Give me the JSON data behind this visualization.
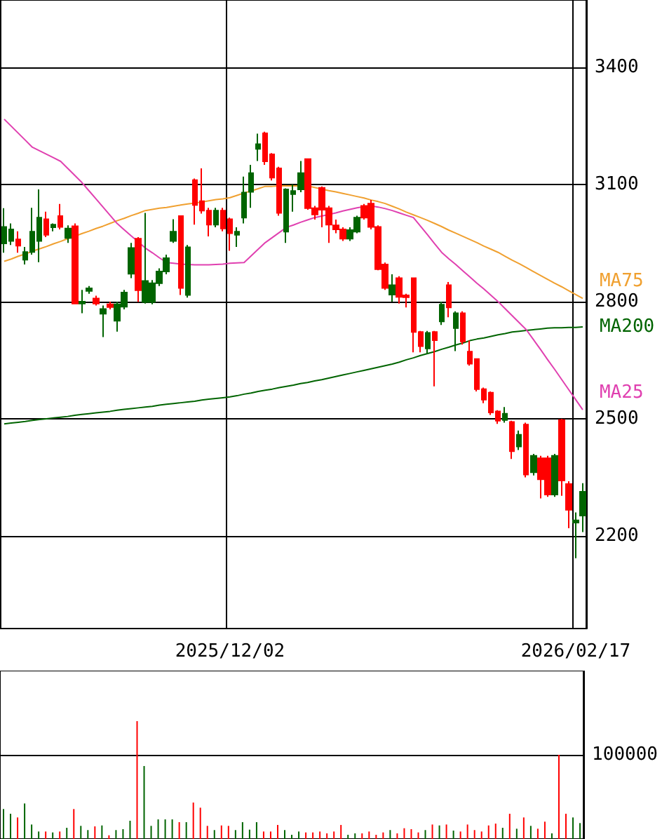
{
  "chart_data": [
    {
      "type": "candlestick",
      "categories": [
        null,
        null,
        null,
        null,
        null,
        null,
        null,
        null,
        null,
        null,
        null,
        null,
        null,
        null,
        null,
        null,
        null,
        null,
        null,
        null,
        null,
        null,
        null,
        null,
        null,
        null,
        null,
        null,
        null,
        null,
        null,
        null,
        "2025/12/02",
        null,
        null,
        null,
        null,
        null,
        null,
        null,
        null,
        null,
        null,
        null,
        null,
        null,
        null,
        null,
        null,
        null,
        null,
        null,
        null,
        null,
        null,
        null,
        null,
        null,
        null,
        null,
        null,
        null,
        null,
        null,
        null,
        null,
        null,
        null,
        null,
        null,
        null,
        null,
        null,
        null,
        null,
        null,
        null,
        null,
        null,
        null,
        null,
        "2026/02/17",
        null
      ],
      "ohlc": [
        [
          2949,
          3039,
          2925,
          2991
        ],
        [
          2955,
          3000,
          2945,
          2985
        ],
        [
          2959,
          2980,
          2925,
          2943
        ],
        [
          2907,
          2940,
          2895,
          2927
        ],
        [
          2927,
          3040,
          2920,
          2979
        ],
        [
          2955,
          3087,
          2901,
          3015
        ],
        [
          3011,
          3030,
          2965,
          2971
        ],
        [
          2990,
          3000,
          2980,
          2997
        ],
        [
          3019,
          3050,
          2985,
          2991
        ],
        [
          2963,
          2995,
          2950,
          2987
        ],
        [
          2993,
          3000,
          2795,
          2795
        ],
        [
          2795,
          2830,
          2770,
          2800
        ],
        [
          2827,
          2840,
          2820,
          2834
        ],
        [
          2808,
          2815,
          2790,
          2795
        ],
        [
          2769,
          2790,
          2709,
          2781
        ],
        [
          2793,
          2800,
          2780,
          2786
        ],
        [
          2751,
          2800,
          2723,
          2793
        ],
        [
          2787,
          2830,
          2780,
          2823
        ],
        [
          2871,
          2950,
          2860,
          2937
        ],
        [
          2961,
          2965,
          2799,
          2829
        ],
        [
          2799,
          3027,
          2795,
          2853
        ],
        [
          2799,
          2855,
          2793,
          2847
        ],
        [
          2847,
          2885,
          2840,
          2877
        ],
        [
          2877,
          2920,
          2870,
          2911
        ],
        [
          2955,
          3011,
          2950,
          2979
        ],
        [
          3019,
          3020,
          2817,
          2835
        ],
        [
          2817,
          2945,
          2810,
          2939
        ],
        [
          3111,
          3115,
          2997,
          3047
        ],
        [
          3057,
          3141,
          3025,
          3033
        ],
        [
          3033,
          3040,
          2967,
          2997
        ],
        [
          2997,
          3040,
          2990,
          3033
        ],
        [
          3033,
          3040,
          2980,
          2987
        ],
        [
          3011,
          3015,
          2930,
          2975
        ],
        [
          2971,
          2990,
          2940,
          2979
        ],
        [
          3015,
          3120,
          3000,
          3079
        ],
        [
          3081,
          3150,
          3040,
          3129
        ],
        [
          3191,
          3230,
          3160,
          3203
        ],
        [
          3231,
          3235,
          3150,
          3159
        ],
        [
          3177,
          3180,
          3110,
          3117
        ],
        [
          3141,
          3145,
          3020,
          3027
        ],
        [
          2979,
          3090,
          2950,
          3087
        ],
        [
          3075,
          3100,
          3030,
          3083
        ],
        [
          3087,
          3160,
          3080,
          3129
        ],
        [
          3165,
          3165,
          3035,
          3039
        ],
        [
          3039,
          3045,
          3010,
          3023
        ],
        [
          3091,
          3095,
          2990,
          3035
        ],
        [
          3039,
          3045,
          2950,
          2997
        ],
        [
          2995,
          3010,
          2975,
          2985
        ],
        [
          2985,
          2990,
          2955,
          2961
        ],
        [
          2961,
          2990,
          2955,
          2983
        ],
        [
          2979,
          3020,
          2975,
          3015
        ],
        [
          3045,
          3050,
          3010,
          3015
        ],
        [
          3051,
          3060,
          2985,
          2991
        ],
        [
          2991,
          2995,
          2880,
          2883
        ],
        [
          2895,
          2900,
          2830,
          2835
        ],
        [
          2818,
          2870,
          2800,
          2842
        ],
        [
          2860,
          2865,
          2795,
          2812
        ],
        [
          2816,
          2820,
          2785,
          2811
        ],
        [
          2860,
          2862,
          2670,
          2722
        ],
        [
          2722,
          2725,
          2670,
          2686
        ],
        [
          2680,
          2725,
          2665,
          2720
        ],
        [
          2722,
          2725,
          2583,
          2701
        ],
        [
          2749,
          2800,
          2740,
          2792
        ],
        [
          2842,
          2850,
          2760,
          2785
        ],
        [
          2732,
          2775,
          2673,
          2770
        ],
        [
          2770,
          2775,
          2690,
          2698
        ],
        [
          2672,
          2700,
          2636,
          2641
        ],
        [
          2653,
          2655,
          2570,
          2576
        ],
        [
          2576,
          2580,
          2540,
          2549
        ],
        [
          2567,
          2570,
          2510,
          2516
        ],
        [
          2519,
          2522,
          2487,
          2495
        ],
        [
          2497,
          2530,
          2490,
          2513
        ],
        [
          2492,
          2495,
          2397,
          2417
        ],
        [
          2429,
          2470,
          2420,
          2459
        ],
        [
          2485,
          2490,
          2350,
          2357
        ],
        [
          2363,
          2410,
          2355,
          2405
        ],
        [
          2399,
          2405,
          2296,
          2345
        ],
        [
          2399,
          2405,
          2300,
          2306
        ],
        [
          2306,
          2410,
          2300,
          2405
        ],
        [
          2497,
          2500,
          2303,
          2342
        ],
        [
          2333,
          2340,
          2220,
          2267
        ],
        [
          2234,
          2260,
          2143,
          2240
        ],
        [
          2252,
          2335,
          2210,
          2313
        ]
      ],
      "colors": [
        "#006400",
        "#006400",
        "#ff0000",
        "#006400",
        "#006400",
        "#006400",
        "#ff0000",
        "#006400",
        "#ff0000",
        "#006400",
        "#ff0000",
        "#006400",
        "#006400",
        "#ff0000",
        "#006400",
        "#ff0000",
        "#006400",
        "#006400",
        "#006400",
        "#ff0000",
        "#006400",
        "#006400",
        "#006400",
        "#006400",
        "#006400",
        "#ff0000",
        "#006400",
        "#ff0000",
        "#ff0000",
        "#ff0000",
        "#006400",
        "#ff0000",
        "#ff0000",
        "#006400",
        "#006400",
        "#006400",
        "#006400",
        "#ff0000",
        "#ff0000",
        "#ff0000",
        "#006400",
        "#006400",
        "#006400",
        "#ff0000",
        "#ff0000",
        "#ff0000",
        "#ff0000",
        "#ff0000",
        "#ff0000",
        "#006400",
        "#006400",
        "#ff0000",
        "#ff0000",
        "#ff0000",
        "#ff0000",
        "#006400",
        "#ff0000",
        "#ff0000",
        "#ff0000",
        "#ff0000",
        "#006400",
        "#ff0000",
        "#006400",
        "#ff0000",
        "#006400",
        "#ff0000",
        "#ff0000",
        "#ff0000",
        "#ff0000",
        "#ff0000",
        "#ff0000",
        "#006400",
        "#ff0000",
        "#006400",
        "#ff0000",
        "#006400",
        "#ff0000",
        "#ff0000",
        "#006400",
        "#ff0000",
        "#ff0000",
        "#006400",
        "#006400"
      ],
      "series": [
        {
          "type": "line",
          "name": "MA75",
          "color": "#f0a030",
          "values": [
            2903,
            2909,
            2916,
            2922,
            2929,
            2935,
            2941,
            2948,
            2954,
            2961,
            2967,
            2974,
            2980,
            2987,
            2993,
            3000,
            3007,
            3013,
            3020,
            3026,
            3033,
            3036,
            3039,
            3041,
            3044,
            3047,
            3050,
            3052,
            3055,
            3058,
            3061,
            3063,
            3066,
            3072,
            3078,
            3083,
            3089,
            3095,
            3095,
            3096,
            3096,
            3096,
            3096,
            3096,
            3092,
            3088,
            3084,
            3081,
            3077,
            3073,
            3069,
            3065,
            3060,
            3056,
            3051,
            3044,
            3037,
            3029,
            3022,
            3015,
            3008,
            3000,
            2992,
            2983,
            2975,
            2967,
            2959,
            2951,
            2942,
            2934,
            2926,
            2916,
            2906,
            2897,
            2887,
            2877,
            2867,
            2857,
            2847,
            2838,
            2828,
            2818,
            2808
          ]
        },
        {
          "type": "line",
          "name": "MA200",
          "color": "#006400",
          "values": [
            2487,
            2489,
            2491,
            2493,
            2496,
            2498,
            2500,
            2502,
            2504,
            2506,
            2509,
            2511,
            2513,
            2515,
            2517,
            2519,
            2522,
            2524,
            2526,
            2528,
            2530,
            2532,
            2535,
            2537,
            2539,
            2541,
            2543,
            2545,
            2548,
            2550,
            2552,
            2554,
            2556,
            2559,
            2563,
            2566,
            2570,
            2573,
            2576,
            2580,
            2583,
            2586,
            2590,
            2593,
            2597,
            2600,
            2604,
            2608,
            2612,
            2616,
            2620,
            2624,
            2628,
            2632,
            2636,
            2640,
            2645,
            2651,
            2656,
            2662,
            2667,
            2672,
            2678,
            2683,
            2689,
            2694,
            2700,
            2704,
            2707,
            2711,
            2715,
            2718,
            2722,
            2724,
            2726,
            2728,
            2730,
            2732,
            2733,
            2733,
            2734,
            2734,
            2735
          ]
        },
        {
          "type": "line",
          "name": "MA25",
          "color": "#e040b0",
          "values": [
            3267,
            3249,
            3231,
            3213,
            3195,
            3186,
            3177,
            3168,
            3159,
            3141,
            3123,
            3105,
            3084,
            3063,
            3042,
            3021,
            3000,
            2984,
            2968,
            2953,
            2937,
            2925,
            2912,
            2900,
            2898,
            2896,
            2895,
            2894,
            2894,
            2894,
            2895,
            2896,
            2898,
            2899,
            2900,
            2917,
            2934,
            2951,
            2964,
            2977,
            2990,
            2996,
            3003,
            3009,
            3015,
            3019,
            3023,
            3027,
            3032,
            3036,
            3040,
            3043,
            3045,
            3042,
            3038,
            3033,
            3027,
            3021,
            3015,
            2993,
            2971,
            2948,
            2926,
            2910,
            2895,
            2879,
            2863,
            2847,
            2832,
            2816,
            2800,
            2782,
            2764,
            2746,
            2728,
            2703,
            2678,
            2652,
            2627,
            2601,
            2575,
            2549,
            2523
          ]
        }
      ],
      "ylim": [
        1963,
        3572
      ],
      "yticks": [
        2200,
        2500,
        2800,
        3100,
        3400
      ],
      "grid": true,
      "marker": "none"
    },
    {
      "type": "bar",
      "categories": [
        null,
        null,
        null,
        null,
        null,
        null,
        null,
        null,
        null,
        null,
        null,
        null,
        null,
        null,
        null,
        null,
        null,
        null,
        null,
        null,
        null,
        null,
        null,
        null,
        null,
        null,
        null,
        null,
        null,
        null,
        null,
        null,
        null,
        null,
        null,
        null,
        null,
        null,
        null,
        null,
        null,
        null,
        null,
        null,
        null,
        null,
        null,
        null,
        null,
        null,
        null,
        null,
        null,
        null,
        null,
        null,
        null,
        null,
        null,
        null,
        null,
        null,
        null,
        null,
        null,
        null,
        null,
        null,
        null,
        null,
        null,
        null,
        null,
        null,
        null,
        null,
        null,
        null,
        null,
        null,
        null,
        null,
        null
      ],
      "values": [
        35600,
        30000,
        25600,
        42200,
        17200,
        8900,
        8900,
        7800,
        8900,
        13300,
        35600,
        15600,
        10600,
        15000,
        16100,
        4400,
        10600,
        11700,
        21700,
        140000,
        86700,
        15600,
        23300,
        23300,
        23300,
        20000,
        20000,
        43300,
        37200,
        15600,
        10600,
        16100,
        15600,
        10600,
        20000,
        11100,
        20000,
        8900,
        8900,
        16700,
        10600,
        5000,
        8900,
        7800,
        7800,
        8900,
        6700,
        8900,
        16700,
        5000,
        6700,
        6700,
        8900,
        5000,
        7800,
        10600,
        6700,
        12800,
        11700,
        7800,
        10600,
        17200,
        16100,
        17200,
        10000,
        8900,
        17200,
        10600,
        8900,
        16100,
        18300,
        13300,
        30000,
        12200,
        25600,
        15600,
        12200,
        20600,
        6700,
        100000,
        30000,
        25600,
        18900
      ],
      "colors": [
        "#006400",
        "#006400",
        "#ff0000",
        "#006400",
        "#006400",
        "#006400",
        "#ff0000",
        "#006400",
        "#ff0000",
        "#006400",
        "#ff0000",
        "#006400",
        "#006400",
        "#ff0000",
        "#006400",
        "#ff0000",
        "#006400",
        "#006400",
        "#006400",
        "#ff0000",
        "#006400",
        "#006400",
        "#006400",
        "#006400",
        "#006400",
        "#ff0000",
        "#006400",
        "#ff0000",
        "#ff0000",
        "#ff0000",
        "#006400",
        "#ff0000",
        "#ff0000",
        "#006400",
        "#006400",
        "#006400",
        "#006400",
        "#ff0000",
        "#ff0000",
        "#ff0000",
        "#006400",
        "#006400",
        "#006400",
        "#ff0000",
        "#ff0000",
        "#ff0000",
        "#ff0000",
        "#ff0000",
        "#ff0000",
        "#006400",
        "#006400",
        "#ff0000",
        "#ff0000",
        "#ff0000",
        "#ff0000",
        "#006400",
        "#ff0000",
        "#ff0000",
        "#ff0000",
        "#ff0000",
        "#006400",
        "#ff0000",
        "#006400",
        "#ff0000",
        "#006400",
        "#ff0000",
        "#ff0000",
        "#ff0000",
        "#ff0000",
        "#ff0000",
        "#ff0000",
        "#006400",
        "#ff0000",
        "#006400",
        "#ff0000",
        "#006400",
        "#ff0000",
        "#ff0000",
        "#006400",
        "#ff0000",
        "#ff0000",
        "#006400",
        "#006400"
      ],
      "ylim": [
        0,
        200000
      ],
      "yticks": [
        {
          "value": 0,
          "label": null
        },
        100000
      ],
      "grid": "y",
      "tick_labels": "y"
    }
  ]
}
